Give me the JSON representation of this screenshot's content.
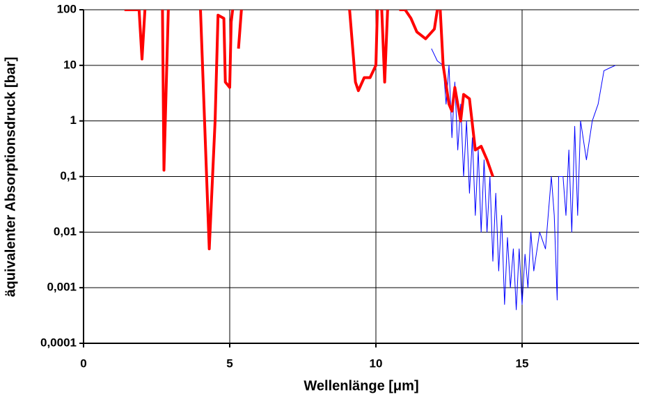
{
  "chart_data": {
    "type": "line",
    "xlabel": "Wellenlänge [μm]",
    "ylabel": "äquivalenter Absorptionsdruck [bar]",
    "xlim": [
      0,
      19
    ],
    "xticks": [
      0,
      5,
      10,
      15
    ],
    "ylim": [
      0.0001,
      100
    ],
    "ylog": true,
    "yticks": [
      {
        "value": 0.0001,
        "label": "0,0001"
      },
      {
        "value": 0.001,
        "label": "0,001"
      },
      {
        "value": 0.01,
        "label": "0,01"
      },
      {
        "value": 0.1,
        "label": "0,1"
      },
      1,
      10,
      100
    ],
    "grid": true,
    "series": [
      {
        "color": "#0000ff",
        "width": 1,
        "x": [
          11.9,
          12.1,
          12.3,
          12.4,
          12.5,
          12.6,
          12.7,
          12.8,
          12.9,
          13.0,
          13.1,
          13.2,
          13.3,
          13.4,
          13.5,
          13.6,
          13.7,
          13.8,
          13.9,
          14.0,
          14.1,
          14.2,
          14.3,
          14.4,
          14.5,
          14.6,
          14.7,
          14.8,
          14.9,
          15.0,
          15.1,
          15.2,
          15.3,
          15.4,
          15.6,
          15.8,
          16.0,
          16.1,
          16.2,
          16.25,
          16.4,
          16.5,
          16.6,
          16.7,
          16.8,
          16.9,
          17.0,
          17.2,
          17.4,
          17.6,
          17.8,
          18.0,
          18.2
        ],
        "values": [
          20,
          12,
          10,
          2,
          10,
          0.5,
          5,
          0.3,
          2,
          0.1,
          1,
          0.05,
          0.5,
          0.02,
          0.3,
          0.01,
          0.2,
          0.01,
          0.1,
          0.003,
          0.05,
          0.002,
          0.02,
          0.0005,
          0.008,
          0.001,
          0.005,
          0.0004,
          0.005,
          0.0005,
          0.004,
          0.001,
          0.01,
          0.002,
          0.01,
          0.005,
          0.1,
          0.02,
          0.0006,
          0.1,
          0.1,
          0.02,
          0.3,
          0.01,
          0.8,
          0.02,
          1,
          0.2,
          1,
          2,
          8,
          9,
          10
        ]
      },
      {
        "color": "#ff0000",
        "width": 4,
        "x": [
          1.4,
          1.9,
          2.0,
          2.1,
          2.4,
          2.7,
          2.75,
          2.9,
          3.4,
          4.0,
          4.3,
          4.5,
          4.6,
          4.8,
          4.85,
          5.0,
          5.05,
          5.1,
          5.2,
          5.3,
          5.4,
          7.0,
          9.1,
          9.3,
          9.4,
          9.6,
          9.8,
          10.0,
          10.05,
          10.1,
          10.2,
          10.3,
          10.4,
          10.6,
          10.8,
          11.0,
          11.2,
          11.4,
          11.7,
          12.0,
          12.1,
          12.15,
          12.2,
          12.3,
          12.5,
          12.6,
          12.7,
          12.9,
          13.0,
          13.2,
          13.4,
          13.6,
          13.8,
          14.0
        ],
        "values": [
          100,
          100,
          13,
          100,
          null,
          100,
          0.13,
          100,
          null,
          100,
          0.005,
          1,
          80,
          70,
          5,
          4,
          60,
          100,
          null,
          20,
          100,
          null,
          100,
          5,
          3.5,
          6,
          6,
          10,
          100,
          null,
          100,
          5,
          100,
          null,
          100,
          100,
          70,
          40,
          30,
          45,
          100,
          null,
          100,
          10,
          2,
          1.5,
          4,
          1,
          3,
          2.5,
          0.3,
          0.35,
          0.2,
          0.1
        ]
      }
    ]
  }
}
